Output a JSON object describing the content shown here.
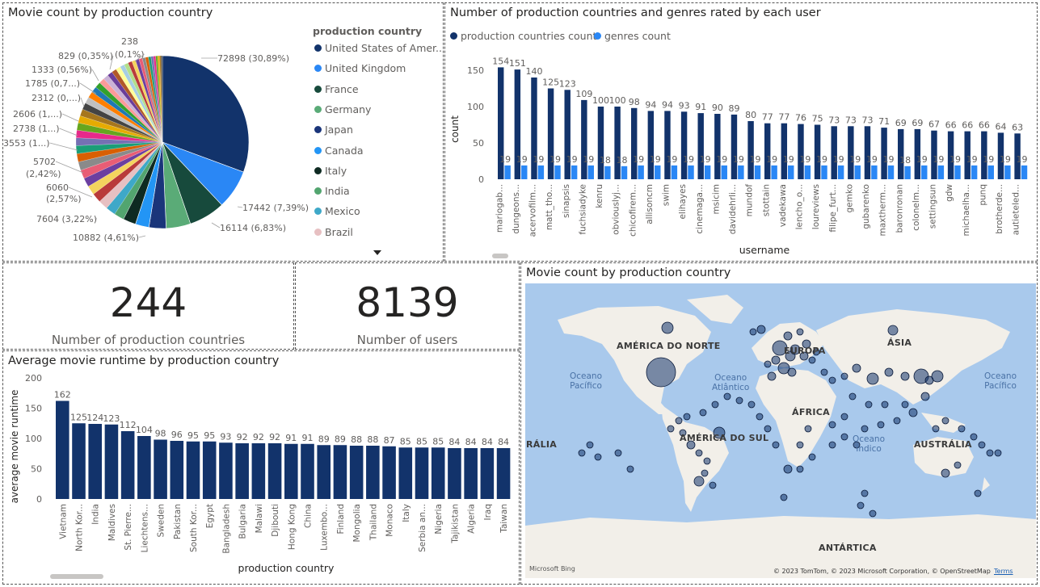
{
  "pie": {
    "title": "Movie count by production country",
    "legend_title": "production country",
    "legend_items": [
      {
        "label": "United States of Amer...",
        "color": "#12336b"
      },
      {
        "label": "United Kingdom",
        "color": "#2a87f5"
      },
      {
        "label": "France",
        "color": "#174a3c"
      },
      {
        "label": "Germany",
        "color": "#5aab77"
      },
      {
        "label": "Japan",
        "color": "#1a357a"
      },
      {
        "label": "Canada",
        "color": "#2395f5"
      },
      {
        "label": "Italy",
        "color": "#0e2a22"
      },
      {
        "label": "India",
        "color": "#52a56f"
      },
      {
        "label": "Mexico",
        "color": "#3ea8c8"
      },
      {
        "label": "Brazil",
        "color": "#e7c0c2"
      }
    ],
    "slice_labels": [
      "72898 (30,89%)",
      "17442 (7,39%)",
      "16114 (6,83%)",
      "10882 (4,61%)",
      "7604 (3,22%)",
      "6060",
      "(2,57%)",
      "5702",
      "(2,42%)",
      "3553 (1...)",
      "2738 (1...)",
      "2606 (1,...)",
      "2312 (0,...)",
      "1785 (0,7...)",
      "1333 (0,56%)",
      "829 (0,35%)",
      "238",
      "(0,1%)"
    ],
    "chart_data": {
      "type": "pie",
      "title": "Movie count by production country",
      "values": [
        72898,
        17442,
        16114,
        10882,
        7604,
        6060,
        5702,
        3553,
        2738,
        2606,
        2312,
        1785,
        1333,
        829,
        238
      ],
      "percent": [
        30.89,
        7.39,
        6.83,
        4.61,
        3.22,
        2.57,
        2.42
      ],
      "colors": [
        "#12336b",
        "#2a87f5",
        "#174a3c",
        "#5aab77",
        "#1a357a",
        "#2395f5",
        "#0e2a22",
        "#52a56f",
        "#3ea8c8",
        "#e7c0c2"
      ]
    }
  },
  "users_chart": {
    "title": "Number of production countries and genres rated by each user",
    "legend": [
      {
        "label": "production countries count",
        "color": "#12336b"
      },
      {
        "label": "genres count",
        "color": "#2a87f5"
      }
    ],
    "ylabel": "count",
    "xlabel": "username",
    "chart_data": {
      "type": "bar",
      "categories": [
        "mariogab...",
        "dungeons...",
        "acervofilm...",
        "matt_tho...",
        "sinapsis",
        "fuchsiadyke",
        "kenru",
        "obviouslyj...",
        "chicofirem...",
        "allisoncm",
        "swim",
        "elihayes",
        "cinemaga...",
        "msicim",
        "davidehrli...",
        "mundof",
        "stottain",
        "vadekawa",
        "lencho_o...",
        "loureviews",
        "filipe_furt...",
        "gemko",
        "gubarenko",
        "maxtherm...",
        "baronronan",
        "colonelm...",
        "settingsun",
        "gdw",
        "michaelha...",
        "punq",
        "brotherde...",
        "autieteled..."
      ],
      "series": [
        {
          "name": "production countries count",
          "values": [
            154,
            151,
            140,
            125,
            123,
            109,
            100,
            100,
            98,
            94,
            94,
            93,
            91,
            90,
            89,
            80,
            77,
            77,
            76,
            75,
            73,
            73,
            73,
            71,
            69,
            69,
            67,
            66,
            66,
            66,
            64,
            63
          ]
        },
        {
          "name": "genres count",
          "values": [
            19,
            19,
            19,
            19,
            19,
            19,
            18,
            18,
            19,
            19,
            19,
            19,
            19,
            19,
            19,
            19,
            19,
            19,
            19,
            19,
            19,
            19,
            19,
            19,
            18,
            19,
            19,
            19,
            19,
            19,
            19,
            19
          ]
        }
      ],
      "yticks": [
        0,
        50,
        100,
        150
      ],
      "ylim": [
        0,
        160
      ],
      "xlabel": "username",
      "ylabel": "count"
    }
  },
  "card_countries": {
    "value": "244",
    "label": "Number of production countries"
  },
  "card_users": {
    "value": "8139",
    "label": "Number of users"
  },
  "runtime_chart": {
    "title": "Average movie runtime by production country",
    "ylabel": "average movie runtime",
    "xlabel": "production country",
    "chart_data": {
      "type": "bar",
      "categories": [
        "Vietnam",
        "North Kor...",
        "India",
        "Maldives",
        "St. Pierre...",
        "Liechtens...",
        "Sweden",
        "Pakistan",
        "South Kor...",
        "Egypt",
        "Bangladesh",
        "Bulgaria",
        "Malawi",
        "Djibouti",
        "Hong Kong",
        "China",
        "Luxembo...",
        "Finland",
        "Mongolia",
        "Thailand",
        "Monaco",
        "Italy",
        "Serbia an...",
        "Nigeria",
        "Tajikistan",
        "Algeria",
        "Iraq",
        "Taiwan"
      ],
      "values": [
        162,
        125,
        124,
        123,
        112,
        104,
        98,
        96,
        95,
        95,
        93,
        92,
        92,
        92,
        91,
        91,
        89,
        89,
        88,
        88,
        87,
        85,
        85,
        85,
        84,
        84,
        84,
        84
      ],
      "yticks": [
        0,
        50,
        100,
        150,
        200
      ],
      "ylim": [
        0,
        200
      ],
      "xlabel": "production country",
      "ylabel": "average movie runtime"
    },
    "bar_color": "#12336b"
  },
  "map": {
    "title": "Movie count by production country",
    "continents": [
      "AMÉRICA DO NORTE",
      "EUROPA",
      "ÁSIA",
      "ÁFRICA",
      "AMÉRICA DO SUL",
      "AUSTRÁLIA",
      "ANTÁRTICA",
      "RÁLIA"
    ],
    "oceans": [
      "Oceano\nPacífico",
      "Oceano\nAtlântico",
      "Oceano\nÍndico",
      "Oceano\nPacífico"
    ],
    "attribution": "© 2023 TomTom, © 2023 Microsoft Corporation, © OpenStreetMap",
    "terms": "Terms",
    "logo": "Microsoft Bing"
  }
}
